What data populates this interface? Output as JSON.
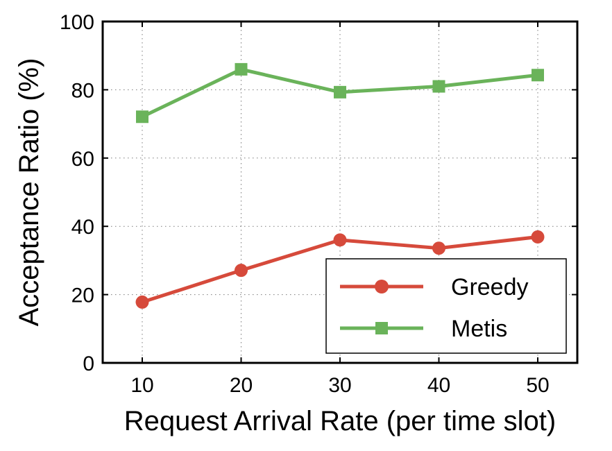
{
  "chart_data": {
    "type": "line",
    "xlabel": "Request Arrival Rate (per time slot)",
    "ylabel": "Acceptance Ratio (%)",
    "x": [
      10,
      20,
      30,
      40,
      50
    ],
    "xticks": [
      "10",
      "20",
      "30",
      "40",
      "50"
    ],
    "yticks": [
      "0",
      "20",
      "40",
      "60",
      "80",
      "100"
    ],
    "xlim": [
      6,
      54
    ],
    "ylim": [
      0,
      100
    ],
    "grid": true,
    "legend_position": "bottom-right",
    "series": [
      {
        "name": "Greedy",
        "values": [
          17.8,
          27.1,
          36.0,
          33.6,
          36.9
        ],
        "color": "#d64a3b",
        "marker": "circle"
      },
      {
        "name": "Metis",
        "values": [
          72.1,
          86.0,
          79.3,
          81.0,
          84.3
        ],
        "color": "#6ab35a",
        "marker": "square"
      }
    ]
  }
}
